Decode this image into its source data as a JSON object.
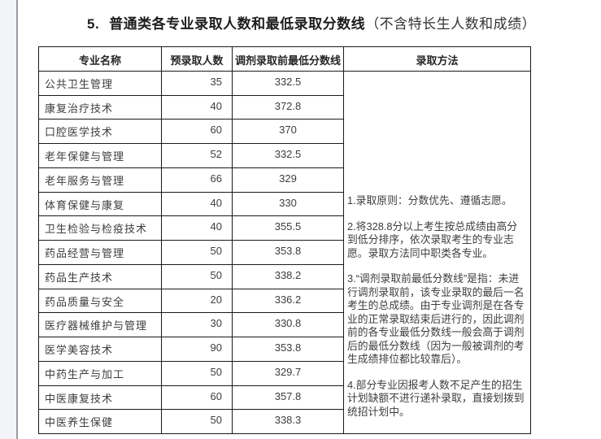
{
  "page": {
    "title_number": "5.",
    "title_main": "普通类各专业录取人数和最低录取分数线",
    "title_note": "（不含特长生人数和成绩）"
  },
  "table": {
    "headers": [
      "专业名称",
      "预录取人数",
      "调剂录取前最低分数线",
      "录取方法"
    ],
    "rows": [
      {
        "major": "公共卫生管理",
        "planned": "35",
        "min_score": "332.5"
      },
      {
        "major": "康复治疗技术",
        "planned": "40",
        "min_score": "372.8"
      },
      {
        "major": "口腔医学技术",
        "planned": "60",
        "min_score": "370"
      },
      {
        "major": "老年保健与管理",
        "planned": "52",
        "min_score": "332.5"
      },
      {
        "major": "老年服务与管理",
        "planned": "66",
        "min_score": "329"
      },
      {
        "major": "体育保健与康复",
        "planned": "40",
        "min_score": "330"
      },
      {
        "major": "卫生检验与检疫技术",
        "planned": "40",
        "min_score": "355.5"
      },
      {
        "major": "药品经营与管理",
        "planned": "50",
        "min_score": "353.8"
      },
      {
        "major": "药品生产技术",
        "planned": "50",
        "min_score": "338.2"
      },
      {
        "major": "药品质量与安全",
        "planned": "20",
        "min_score": "336.2"
      },
      {
        "major": "医疗器械维护与管理",
        "planned": "30",
        "min_score": "330.8"
      },
      {
        "major": "医学美容技术",
        "planned": "90",
        "min_score": "353.8"
      },
      {
        "major": "中药生产与加工",
        "planned": "50",
        "min_score": "329.7"
      },
      {
        "major": "中医康复技术",
        "planned": "60",
        "min_score": "357.8"
      },
      {
        "major": "中医养生保健",
        "planned": "50",
        "min_score": "338.3"
      }
    ],
    "method_paragraphs": [
      "1.录取原则：分数优先、遵循志愿。",
      "2.将328.8分以上考生按总成绩由高分到低分排序，依次录取考生的专业志愿。录取方法同中职类各专业。",
      "3.“调剂录取前最低分数线”是指：未进行调剂录取前，该专业录取的最后一名考生的总成绩。由于专业调剂是在各专业的正常录取结束后进行的，因此调剂前的各专业最低分数线一般会高于调剂后的最低分数线（因为一般被调剂的考生成绩排位都比较靠后）。",
      "4.部分专业因报考人数不足产生的招生计划缺额不进行递补录取，直接划拨到统招计划中。"
    ]
  },
  "colors": {
    "page_bg": "#ffffff",
    "left_strip_bg": "#f3f4f7",
    "left_strip_line": "#9b9ba1",
    "border": "#1a1a1a",
    "text": "#3d3d3d",
    "title_text": "#1d1d1d"
  }
}
